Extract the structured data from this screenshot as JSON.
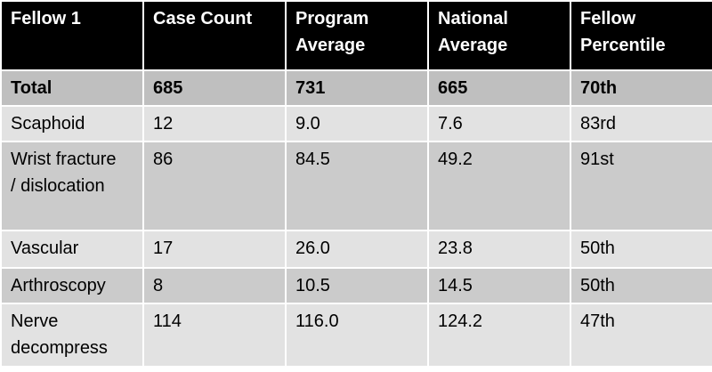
{
  "table": {
    "header": [
      "Fellow 1",
      "Case Count",
      "Program Average",
      "National Average",
      "Fellow Percentile"
    ],
    "rows": [
      [
        "Total",
        "685",
        "731",
        "665",
        "70th"
      ],
      [
        "Scaphoid",
        "12",
        "9.0",
        "7.6",
        "83rd"
      ],
      [
        "Wrist fracture / dislocation",
        "86",
        "84.5",
        "49.2",
        "91st"
      ],
      [
        "Vascular",
        "17",
        "26.0",
        "23.8",
        "50th"
      ],
      [
        "Arthroscopy",
        "8",
        "10.5",
        "14.5",
        "50th"
      ],
      [
        "Nerve decompress",
        "114",
        "116.0",
        "124.2",
        "47th"
      ]
    ]
  }
}
